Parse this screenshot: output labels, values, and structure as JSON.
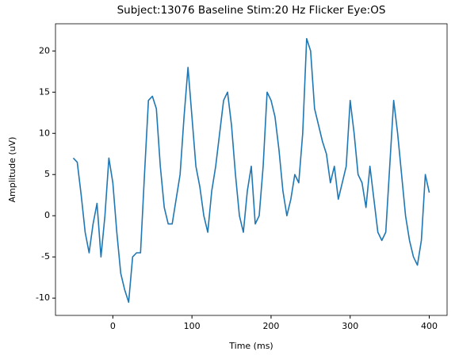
{
  "chart_data": {
    "type": "line",
    "title": "Subject:13076 Baseline Stim:20 Hz Flicker Eye:OS",
    "xlabel": "Time (ms)",
    "ylabel": "Amplitude (uV)",
    "x": [
      -50,
      -45,
      -40,
      -35,
      -30,
      -25,
      -20,
      -15,
      -10,
      -5,
      0,
      5,
      10,
      15,
      20,
      25,
      30,
      35,
      40,
      45,
      50,
      55,
      60,
      65,
      70,
      75,
      80,
      85,
      90,
      95,
      100,
      105,
      110,
      115,
      120,
      125,
      130,
      135,
      140,
      145,
      150,
      155,
      160,
      165,
      170,
      175,
      180,
      185,
      190,
      195,
      200,
      205,
      210,
      215,
      220,
      225,
      230,
      235,
      240,
      245,
      250,
      255,
      260,
      265,
      270,
      275,
      280,
      285,
      290,
      295,
      300,
      305,
      310,
      315,
      320,
      325,
      330,
      335,
      340,
      345,
      350,
      355,
      360,
      365,
      370,
      375,
      380,
      385,
      390,
      395,
      400
    ],
    "series": [
      {
        "name": "Amplitude",
        "color": "#1f77b4",
        "values": [
          7,
          6.5,
          2.5,
          -2,
          -4.5,
          -1,
          1.5,
          -5,
          0,
          7,
          4,
          -2,
          -7,
          -9,
          -10.5,
          -5,
          -4.5,
          -4.5,
          5,
          14,
          14.5,
          13,
          6,
          1,
          -1,
          -1,
          2,
          5,
          12,
          18,
          12,
          6,
          3.5,
          0,
          -2,
          3,
          6,
          10,
          14,
          15,
          11,
          5,
          0,
          -2,
          3,
          6,
          -1,
          0,
          6,
          15,
          14,
          12,
          8,
          3,
          0,
          2,
          5,
          4,
          10,
          21.5,
          20,
          13,
          11,
          9,
          7.5,
          4,
          6,
          2,
          4,
          6,
          14,
          10,
          5,
          4,
          1,
          6,
          2,
          -2,
          -3,
          -2,
          6,
          14,
          10,
          5,
          0,
          -3,
          -5,
          -6,
          -3,
          5,
          2.8
        ]
      }
    ],
    "xlim": [
      -72.5,
      422.5
    ],
    "xticks": [
      0,
      100,
      200,
      300,
      400
    ],
    "ylim": [
      -12.1,
      23.3
    ],
    "yticks": [
      -10,
      -5,
      0,
      5,
      10,
      15,
      20
    ]
  }
}
